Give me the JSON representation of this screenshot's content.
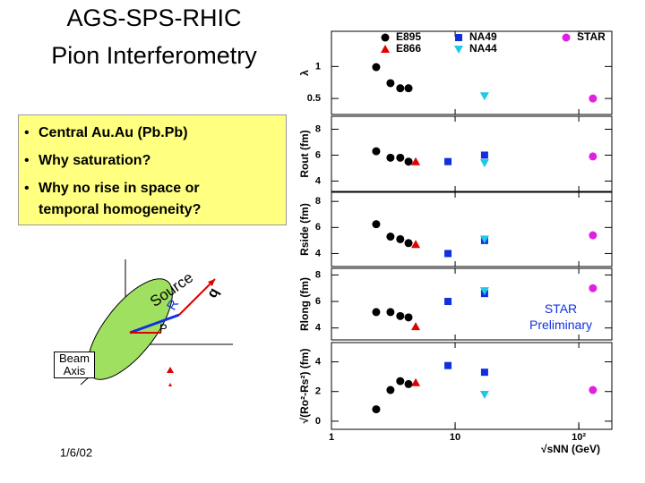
{
  "slide": {
    "title_lines": [
      "AGS-SPS-RHIC",
      "Pion Interferometry"
    ],
    "bullets": [
      "Central Au.Au (Pb.Pb)",
      "Why saturation?",
      "Why no rise in space or temporal homogeneity?"
    ],
    "diagram": {
      "source": "Source",
      "q": "q",
      "r": "R",
      "p": "P",
      "beam_axis": "Beam Axis"
    },
    "date": "1/6/02"
  },
  "chart_data": [
    {
      "type": "scatter",
      "ylabel": "λ",
      "xlim": [
        1,
        185
      ],
      "log_x": true,
      "ylim": [
        0.25,
        1.55
      ],
      "yticks": [
        1,
        0.5
      ],
      "series": [
        {
          "name": "E895",
          "color": "#000000",
          "marker": "circle",
          "x": [
            2.3,
            3.0,
            3.6,
            4.2
          ],
          "values": [
            0.99,
            0.74,
            0.66,
            0.66
          ]
        },
        {
          "name": "E866",
          "color": "#e00000",
          "marker": "triangle",
          "x": [],
          "values": []
        },
        {
          "name": "NA49",
          "color": "#1030e0",
          "marker": "square",
          "x": [],
          "values": []
        },
        {
          "name": "NA44",
          "color": "#20c8e8",
          "marker": "triangle-down",
          "x": [
            17.3
          ],
          "values": [
            0.54
          ]
        },
        {
          "name": "STAR",
          "color": "#e020e0",
          "marker": "circle",
          "x": [
            130
          ],
          "values": [
            0.5
          ]
        }
      ]
    },
    {
      "type": "scatter",
      "ylabel": "Rout (fm)",
      "xlim": [
        1,
        185
      ],
      "log_x": true,
      "ylim": [
        3.2,
        9
      ],
      "yticks": [
        8,
        6,
        4
      ],
      "series": [
        {
          "color": "#000000",
          "marker": "circle",
          "x": [
            2.3,
            3.0,
            3.6,
            4.2
          ],
          "values": [
            6.3,
            5.8,
            5.8,
            5.5
          ]
        },
        {
          "color": "#e00000",
          "marker": "triangle",
          "x": [
            4.8
          ],
          "values": [
            5.5
          ]
        },
        {
          "color": "#1030e0",
          "marker": "square",
          "x": [
            8.75,
            17.3
          ],
          "values": [
            5.5,
            6.0
          ]
        },
        {
          "color": "#20c8e8",
          "marker": "triangle-down",
          "x": [
            17.3
          ],
          "values": [
            5.4
          ]
        },
        {
          "color": "#e020e0",
          "marker": "circle",
          "x": [
            130
          ],
          "values": [
            5.9
          ]
        }
      ]
    },
    {
      "type": "scatter",
      "ylabel": "Rside (fm)",
      "xlim": [
        1,
        185
      ],
      "log_x": true,
      "ylim": [
        3.0,
        8.7
      ],
      "yticks": [
        8,
        6,
        4
      ],
      "series": [
        {
          "color": "#000000",
          "marker": "circle",
          "x": [
            2.3,
            3.0,
            3.6,
            4.2
          ],
          "values": [
            6.25,
            5.3,
            5.1,
            4.8
          ]
        },
        {
          "color": "#e00000",
          "marker": "triangle",
          "x": [
            4.8
          ],
          "values": [
            4.7
          ]
        },
        {
          "color": "#1030e0",
          "marker": "square",
          "x": [
            8.75,
            17.3
          ],
          "values": [
            4.0,
            5.0
          ]
        },
        {
          "color": "#20c8e8",
          "marker": "triangle-down",
          "x": [
            17.3
          ],
          "values": [
            5.1
          ]
        },
        {
          "color": "#e020e0",
          "marker": "circle",
          "x": [
            130
          ],
          "values": [
            5.4
          ]
        }
      ]
    },
    {
      "type": "scatter",
      "ylabel": "Rlong (fm)",
      "xlim": [
        1,
        185
      ],
      "log_x": true,
      "ylim": [
        3.1,
        8.5
      ],
      "yticks": [
        8,
        6,
        4
      ],
      "annotation": "STAR Preliminary",
      "series": [
        {
          "color": "#000000",
          "marker": "circle",
          "x": [
            2.3,
            3.0,
            3.6,
            4.2
          ],
          "values": [
            5.2,
            5.2,
            4.9,
            4.8
          ]
        },
        {
          "color": "#e00000",
          "marker": "triangle",
          "x": [
            4.8
          ],
          "values": [
            4.1
          ]
        },
        {
          "color": "#1030e0",
          "marker": "square",
          "x": [
            8.75,
            17.3
          ],
          "values": [
            6.0,
            6.6
          ]
        },
        {
          "color": "#20c8e8",
          "marker": "triangle-down",
          "x": [
            17.3
          ],
          "values": [
            6.8
          ]
        },
        {
          "color": "#e020e0",
          "marker": "circle",
          "x": [
            130
          ],
          "values": [
            7.0
          ]
        }
      ]
    },
    {
      "type": "scatter",
      "ylabel": "√(Ro²-Rs²) (fm)",
      "xlabel": "√sNN (GeV)",
      "xlim": [
        1,
        185
      ],
      "log_x": true,
      "xticks": [
        1,
        10,
        {
          "value": 100,
          "label": "10²"
        }
      ],
      "ylim": [
        -0.55,
        5.3
      ],
      "yticks": [
        4,
        2,
        0
      ],
      "series": [
        {
          "color": "#000000",
          "marker": "circle",
          "x": [
            2.3,
            3.0,
            3.6,
            4.2
          ],
          "values": [
            0.8,
            2.1,
            2.7,
            2.5
          ]
        },
        {
          "color": "#e00000",
          "marker": "triangle",
          "x": [
            4.8
          ],
          "values": [
            2.6
          ]
        },
        {
          "color": "#1030e0",
          "marker": "square",
          "x": [
            8.75,
            17.3
          ],
          "values": [
            3.75,
            3.3
          ]
        },
        {
          "color": "#20c8e8",
          "marker": "triangle-down",
          "x": [
            17.3
          ],
          "values": [
            1.8
          ]
        },
        {
          "color": "#e020e0",
          "marker": "circle",
          "x": [
            130
          ],
          "values": [
            2.1
          ]
        }
      ]
    }
  ]
}
